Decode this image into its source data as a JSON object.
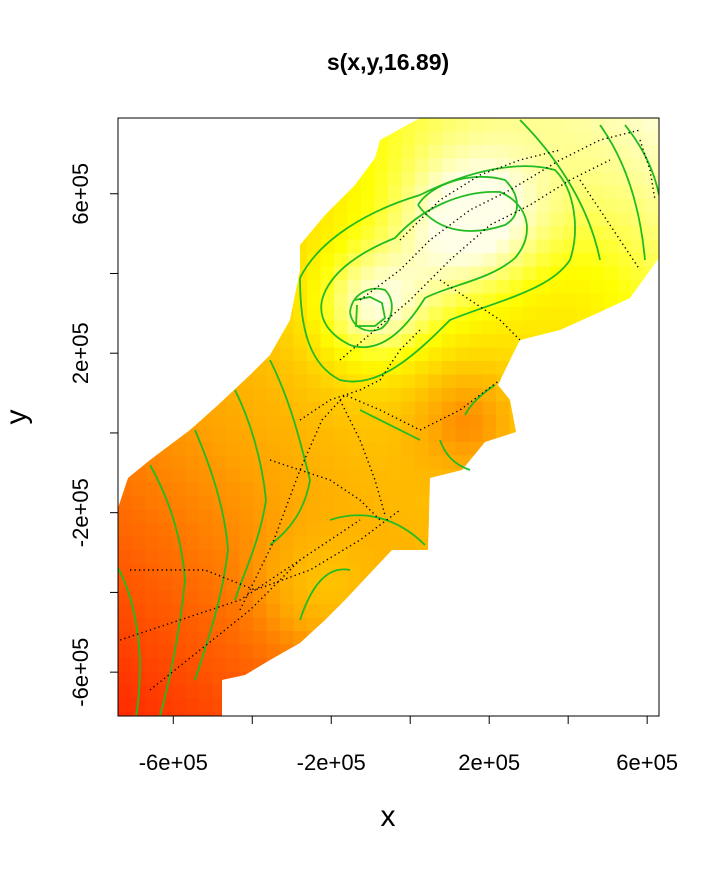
{
  "chart_data": {
    "type": "heatmap",
    "title": "s(x,y,16.89)",
    "xlabel": "x",
    "ylabel": "y",
    "xlim": [
      -740000,
      630000
    ],
    "ylim": [
      -710000,
      790000
    ],
    "x_ticks": [
      {
        "value": -600000,
        "label": "-6e+05"
      },
      {
        "value": -400000,
        "label": ""
      },
      {
        "value": -200000,
        "label": "-2e+05"
      },
      {
        "value": 0,
        "label": ""
      },
      {
        "value": 200000,
        "label": "2e+05"
      },
      {
        "value": 400000,
        "label": ""
      },
      {
        "value": 600000,
        "label": "6e+05"
      }
    ],
    "y_ticks": [
      {
        "value": -600000,
        "label": "-6e+05"
      },
      {
        "value": -400000,
        "label": ""
      },
      {
        "value": -200000,
        "label": "-2e+05"
      },
      {
        "value": 0,
        "label": ""
      },
      {
        "value": 200000,
        "label": "2e+05"
      },
      {
        "value": 400000,
        "label": ""
      },
      {
        "value": 600000,
        "label": "6e+05"
      }
    ],
    "color_scale": {
      "low": "#ff0000",
      "mid": "#ffa500",
      "high_mid": "#ffff00",
      "high": "#ffffe8"
    },
    "contour_color": "#22bb22",
    "grid": false,
    "legend": "none"
  }
}
